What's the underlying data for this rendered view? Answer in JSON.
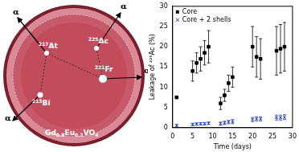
{
  "chart_data": {
    "type": "scatter",
    "x_label": "Time (days)",
    "y_label": "Leakage of ²²⁵Ac (%)",
    "x": [
      1,
      5,
      6,
      7,
      8,
      9,
      12,
      13,
      14,
      15,
      20,
      21,
      22,
      26,
      27,
      28
    ],
    "series": [
      {
        "name": "Core",
        "color": "#000000",
        "marker": "square",
        "values": [
          7.5,
          14,
          16,
          17,
          18.5,
          20,
          6,
          8,
          11,
          12.5,
          20,
          17.5,
          17,
          19,
          19.5,
          20
        ],
        "errors": [
          0.3,
          2.5,
          2.5,
          3,
          3,
          4,
          1.5,
          1.5,
          2,
          2.5,
          5,
          5,
          5,
          6,
          6,
          6
        ]
      },
      {
        "name": "Core + 2 shells",
        "color": "#1f3fbf",
        "marker": "x",
        "values": [
          0.5,
          0.8,
          0.9,
          1,
          1,
          1.1,
          1,
          1.2,
          1.4,
          1.5,
          2,
          2.2,
          2.2,
          2.5,
          2.5,
          2.6
        ],
        "errors": [
          0.3,
          0.3,
          0.3,
          0.3,
          0.3,
          0.3,
          0.4,
          0.4,
          0.4,
          0.5,
          0.5,
          0.5,
          0.5,
          0.6,
          0.6,
          0.6
        ]
      }
    ],
    "xlim": [
      0,
      30
    ],
    "xticks": [
      0,
      5,
      10,
      15,
      20,
      25,
      30
    ],
    "ylim": [
      0,
      30
    ],
    "yticks": [
      0,
      5,
      10,
      15,
      20,
      25,
      30
    ],
    "grid": false,
    "legend": "upper left"
  },
  "diagram": {
    "nuclides": [
      "225Ac",
      "221Fr",
      "217At",
      "213Bi"
    ],
    "alpha_labels": [
      "α",
      "α",
      "α",
      "α"
    ],
    "material": "Gd0.8Eu0.2VO4"
  }
}
